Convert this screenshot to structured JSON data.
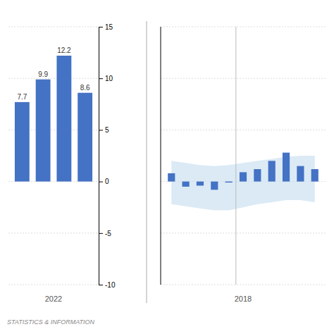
{
  "chart_data": [
    {
      "type": "bar",
      "categories": [
        null,
        null,
        null,
        null
      ],
      "values": [
        7.7,
        9.9,
        12.2,
        8.6
      ],
      "color": "#4472C4",
      "data_labels": true,
      "xlabel": "2022",
      "annotation": "STATISTICS & INFORMATION",
      "ylim": [
        -10,
        15
      ],
      "yticks": [
        -10,
        -5,
        0,
        5,
        10,
        15
      ],
      "grid": true,
      "tick_labels": "y"
    },
    {
      "type": "bar",
      "categories": [
        null,
        null,
        null,
        null,
        null,
        null,
        null,
        null,
        null,
        null,
        null
      ],
      "series": [
        {
          "type": "bar",
          "color": "#4472C4",
          "values": [
            0.8,
            -0.5,
            -0.4,
            -0.8,
            -0.1,
            0.9,
            1.2,
            2.0,
            2.8,
            1.5,
            1.2
          ]
        },
        {
          "type": "area",
          "color": "#c8dff0",
          "upper": [
            2.0,
            1.8,
            1.6,
            1.5,
            1.6,
            1.8,
            2.0,
            2.2,
            2.4,
            2.5,
            2.5
          ],
          "lower": [
            -2.2,
            -2.4,
            -2.6,
            -2.8,
            -2.8,
            -2.5,
            -2.2,
            -2.0,
            -1.8,
            -1.8,
            -2.0
          ]
        }
      ],
      "xlabel": "2018",
      "ylim": [
        -10,
        15
      ],
      "yticks": [
        -10,
        -5,
        0,
        5,
        10,
        15
      ],
      "grid": true,
      "tick_labels": false
    }
  ]
}
